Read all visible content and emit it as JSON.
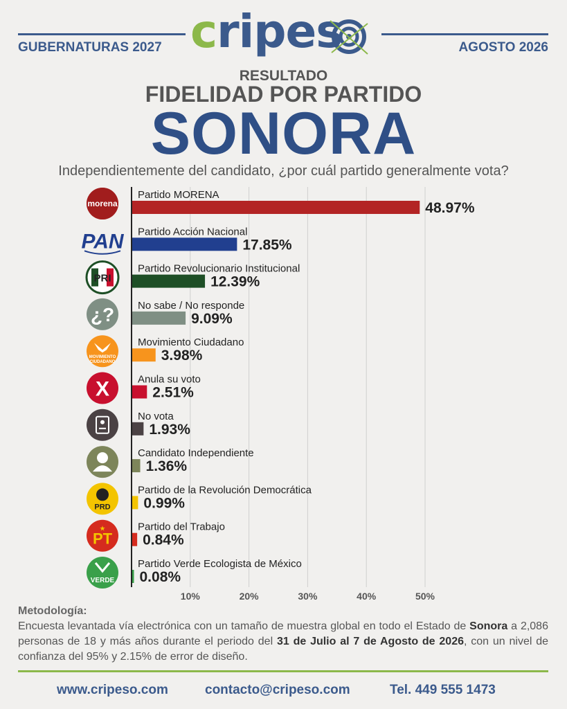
{
  "header": {
    "brand_part1": "cripes",
    "left_label": "GUBERNATURAS 2027",
    "right_label": "AGOSTO 2026",
    "kicker": "RESULTADO",
    "subtitle": "FIDELIDAD POR PARTIDO",
    "state": "SONORA",
    "question": "Independientemente del candidato, ¿por cuál partido generalmente vota?"
  },
  "colors": {
    "brand_blue": "#3b5a8c",
    "brand_green": "#8cb84a",
    "title_blue": "#2f4f86"
  },
  "chart_data": {
    "type": "bar",
    "orientation": "horizontal",
    "categories": [
      "Partido MORENA",
      "Partido Acción Nacional",
      "Partido Revolucionario Institucional",
      "No sabe / No responde",
      "Movimiento Ciudadano",
      "Anula su voto",
      "No vota",
      "Candidato Independiente",
      "Partido de la Revolución Democrática",
      "Partido del Trabajo",
      "Partido Verde Ecologista de México"
    ],
    "values": [
      48.97,
      17.85,
      12.39,
      9.09,
      3.98,
      2.51,
      1.93,
      1.36,
      0.99,
      0.84,
      0.08
    ],
    "value_labels": [
      "48.97%",
      "17.85%",
      "12.39%",
      "9.09%",
      "3.98%",
      "2.51%",
      "1.93%",
      "1.36%",
      "0.99%",
      "0.84%",
      "0.08%"
    ],
    "colors": [
      "#b32424",
      "#213f8f",
      "#1e4f26",
      "#7f8f84",
      "#f7941d",
      "#c8102e",
      "#4b4244",
      "#7d855a",
      "#f3c400",
      "#d52b1e",
      "#3aa04a"
    ],
    "icons": [
      "morena-logo",
      "pan-logo",
      "pri-logo",
      "question-icon",
      "movimiento-ciudadano-logo",
      "anula-x-icon",
      "no-vota-icon",
      "person-icon",
      "prd-logo",
      "pt-logo",
      "verde-logo"
    ],
    "icon_texts": [
      "morena",
      "PAN",
      "PRI",
      "¿?",
      "MOVIMIENTO CIUDADANO",
      "X",
      "",
      "",
      "PRD",
      "PT",
      "VERDE"
    ],
    "xticks": [
      "10%",
      "20%",
      "30%",
      "40%",
      "50%"
    ],
    "xlim": [
      0,
      50
    ],
    "grid": true
  },
  "methodology": {
    "title": "Metodología:",
    "line1_a": "Encuesta levantada vía electrónica con un tamaño de muestra global en todo el Estado de",
    "state_bold": "Sonora",
    "line2_a": "a 2,086 personas de 18 y más años durante el periodo del",
    "dates_bold": "31 de Julio al 7 de Agosto de 2026",
    "line3_a": ", con un nivel de confianza del 95% y 2.15% de error de diseño."
  },
  "footer": {
    "website": "www.cripeso.com",
    "email": "contacto@cripeso.com",
    "phone": "Tel. 449 555 1473"
  }
}
